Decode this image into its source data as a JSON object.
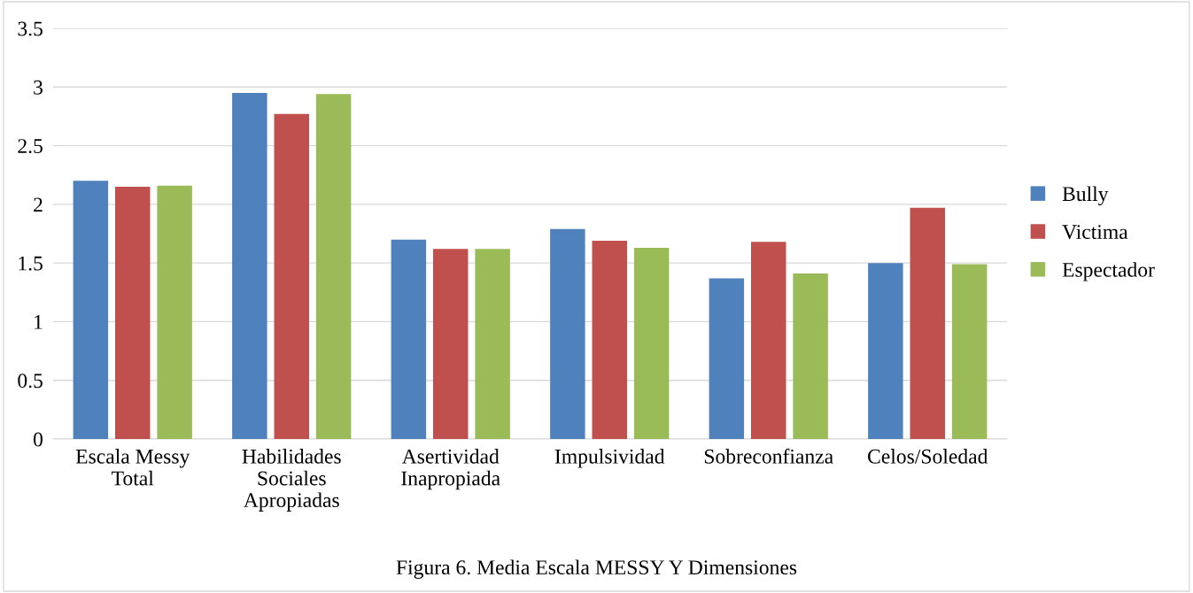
{
  "chart_data": {
    "type": "bar",
    "categories": [
      "Escala Messy\nTotal",
      "Habilidades\nSociales\nApropiadas",
      "Asertividad\nInapropiada",
      "Impulsividad",
      "Sobreconfianza",
      "Celos/Soledad"
    ],
    "series": [
      {
        "name": "Bully",
        "color": "#4f81bd",
        "values": [
          2.2,
          2.95,
          1.7,
          1.79,
          1.37,
          1.5
        ]
      },
      {
        "name": "Victima",
        "color": "#c0504d",
        "values": [
          2.15,
          2.77,
          1.62,
          1.69,
          1.68,
          1.97
        ]
      },
      {
        "name": "Espectador",
        "color": "#9bbb59",
        "values": [
          2.16,
          2.94,
          1.62,
          1.63,
          1.41,
          1.49
        ]
      }
    ],
    "ylim": [
      0,
      3.5
    ],
    "yticks": [
      0,
      0.5,
      1,
      1.5,
      2,
      2.5,
      3,
      3.5
    ],
    "grid": "y",
    "legend": "right",
    "annotations": [
      "Figura 6. Media Escala MESSY Y Dimensiones"
    ]
  }
}
